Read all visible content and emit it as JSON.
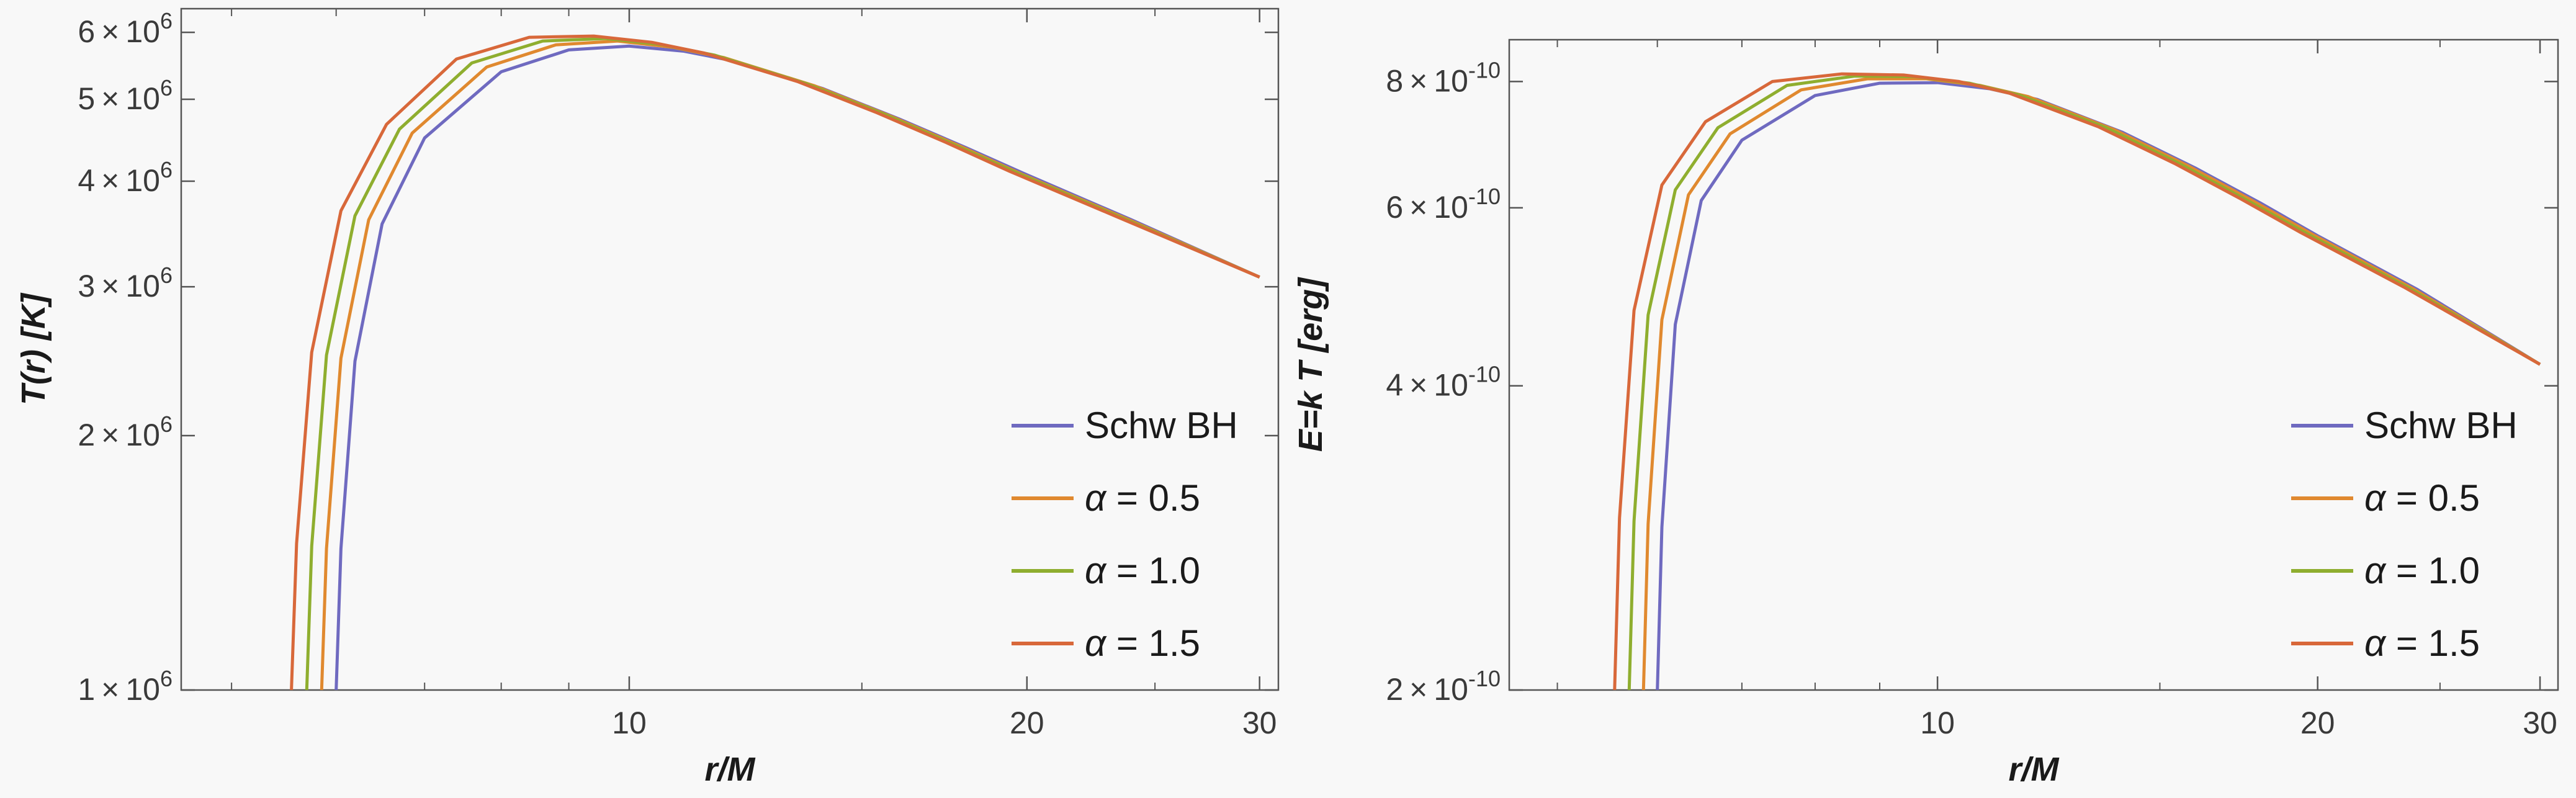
{
  "chart_data": [
    {
      "type": "line",
      "xlabel": "r/M",
      "ylabel": "T(r)  [K]",
      "x_scale": "log",
      "y_scale": "log",
      "xlim": [
        4.58,
        31.0
      ],
      "ylim": [
        1000000,
        6400000
      ],
      "x_ticks": [
        10,
        20,
        30
      ],
      "y_ticks": [
        {
          "value": 1000000,
          "mantissa": "1",
          "exponent": "6"
        },
        {
          "value": 2000000,
          "mantissa": "2",
          "exponent": "6"
        },
        {
          "value": 3000000,
          "mantissa": "3",
          "exponent": "6"
        },
        {
          "value": 4000000,
          "mantissa": "4",
          "exponent": "6"
        },
        {
          "value": 5000000,
          "mantissa": "5",
          "exponent": "6"
        },
        {
          "value": 6000000,
          "mantissa": "6",
          "exponent": "6"
        }
      ],
      "legend_position": "bottom-right",
      "series": [
        {
          "name": "Schw BH",
          "color": "#6f6ac0",
          "x": [
            6.0,
            6.05,
            6.2,
            6.5,
            7.0,
            8.0,
            9.0,
            10.0,
            11.0,
            12.0,
            14.0,
            16.0,
            18.0,
            20.0,
            24.0,
            30.0
          ],
          "y": [
            1000000,
            1470000,
            2450000,
            3560000,
            4500000,
            5390000,
            5720000,
            5780000,
            5700000,
            5550000,
            5150000,
            4740000,
            4380000,
            4070000,
            3600000,
            3080000
          ]
        },
        {
          "name": "α = 0.5",
          "color": "#e0892f",
          "x": [
            5.85,
            5.9,
            6.05,
            6.35,
            6.85,
            7.8,
            8.8,
            9.8,
            10.8,
            11.8,
            13.8,
            15.8,
            17.8,
            19.8,
            23.8,
            30.0
          ],
          "y": [
            1000000,
            1470000,
            2470000,
            3600000,
            4560000,
            5460000,
            5800000,
            5860000,
            5760000,
            5600000,
            5190000,
            4770000,
            4400000,
            4080000,
            3610000,
            3080000
          ]
        },
        {
          "name": "α = 1.0",
          "color": "#8fae2f",
          "x": [
            5.7,
            5.75,
            5.9,
            6.2,
            6.7,
            7.6,
            8.6,
            9.6,
            10.6,
            11.6,
            13.6,
            15.6,
            17.6,
            19.6,
            23.6,
            30.0
          ],
          "y": [
            1000000,
            1480000,
            2490000,
            3640000,
            4610000,
            5520000,
            5860000,
            5900000,
            5800000,
            5640000,
            5220000,
            4800000,
            4420000,
            4100000,
            3620000,
            3080000
          ]
        },
        {
          "name": "α = 1.5",
          "color": "#d8683a",
          "x": [
            5.55,
            5.6,
            5.75,
            6.05,
            6.55,
            7.4,
            8.4,
            9.4,
            10.4,
            11.4,
            13.4,
            15.4,
            17.4,
            19.4,
            23.4,
            30.0
          ],
          "y": [
            1000000,
            1490000,
            2510000,
            3690000,
            4670000,
            5580000,
            5920000,
            5940000,
            5840000,
            5670000,
            5250000,
            4820000,
            4440000,
            4110000,
            3630000,
            3080000
          ]
        }
      ]
    },
    {
      "type": "line",
      "xlabel": "r/M",
      "ylabel": "E=k T  [erg]",
      "x_scale": "log",
      "y_scale": "log",
      "xlim": [
        4.58,
        31.0
      ],
      "ylim": [
        2e-10,
        8.8e-10
      ],
      "x_ticks": [
        10,
        20,
        30
      ],
      "y_ticks": [
        {
          "value": 2e-10,
          "mantissa": "2",
          "exponent": "-10"
        },
        {
          "value": 4e-10,
          "mantissa": "4",
          "exponent": "-10"
        },
        {
          "value": 6e-10,
          "mantissa": "6",
          "exponent": "-10"
        },
        {
          "value": 8e-10,
          "mantissa": "8",
          "exponent": "-10"
        }
      ],
      "legend_position": "bottom-right",
      "series": [
        {
          "name": "Schw BH",
          "color": "#6f6ac0",
          "x": [
            6.0,
            6.05,
            6.2,
            6.5,
            7.0,
            8.0,
            9.0,
            10.0,
            11.0,
            12.0,
            14.0,
            16.0,
            18.0,
            20.0,
            24.0,
            30.0
          ],
          "y": [
            2e-10,
            2.9e-10,
            4.6e-10,
            6.1e-10,
            7e-10,
            7.75e-10,
            7.97e-10,
            7.98e-10,
            7.87e-10,
            7.68e-10,
            7.13e-10,
            6.57e-10,
            6.07e-10,
            5.63e-10,
            4.98e-10,
            4.2e-10
          ]
        },
        {
          "name": "α = 0.5",
          "color": "#e0892f",
          "x": [
            5.85,
            5.9,
            6.05,
            6.35,
            6.85,
            7.8,
            8.8,
            9.8,
            10.8,
            11.8,
            13.8,
            15.8,
            17.8,
            19.8,
            23.8,
            30.0
          ],
          "y": [
            2e-10,
            2.92e-10,
            4.65e-10,
            6.18e-10,
            7.1e-10,
            7.85e-10,
            8.05e-10,
            8.05e-10,
            7.93e-10,
            7.73e-10,
            7.17e-10,
            6.6e-10,
            6.09e-10,
            5.65e-10,
            4.99e-10,
            4.2e-10
          ]
        },
        {
          "name": "α = 1.0",
          "color": "#8fae2f",
          "x": [
            5.7,
            5.75,
            5.9,
            6.2,
            6.7,
            7.6,
            8.6,
            9.6,
            10.6,
            11.6,
            13.6,
            15.6,
            17.6,
            19.6,
            23.6,
            30.0
          ],
          "y": [
            2e-10,
            2.94e-10,
            4.7e-10,
            6.25e-10,
            7.2e-10,
            7.93e-10,
            8.1e-10,
            8.09e-10,
            7.97e-10,
            7.76e-10,
            7.2e-10,
            6.62e-10,
            6.1e-10,
            5.66e-10,
            5e-10,
            4.2e-10
          ]
        },
        {
          "name": "α = 1.5",
          "color": "#d8683a",
          "x": [
            5.55,
            5.6,
            5.75,
            6.05,
            6.55,
            7.4,
            8.4,
            9.4,
            10.4,
            11.4,
            13.4,
            15.4,
            17.4,
            19.4,
            23.4,
            30.0
          ],
          "y": [
            2e-10,
            2.96e-10,
            4.75e-10,
            6.32e-10,
            7.3e-10,
            8e-10,
            8.14e-10,
            8.12e-10,
            8e-10,
            7.79e-10,
            7.22e-10,
            6.64e-10,
            6.12e-10,
            5.67e-10,
            5.01e-10,
            4.2e-10
          ]
        }
      ]
    }
  ]
}
